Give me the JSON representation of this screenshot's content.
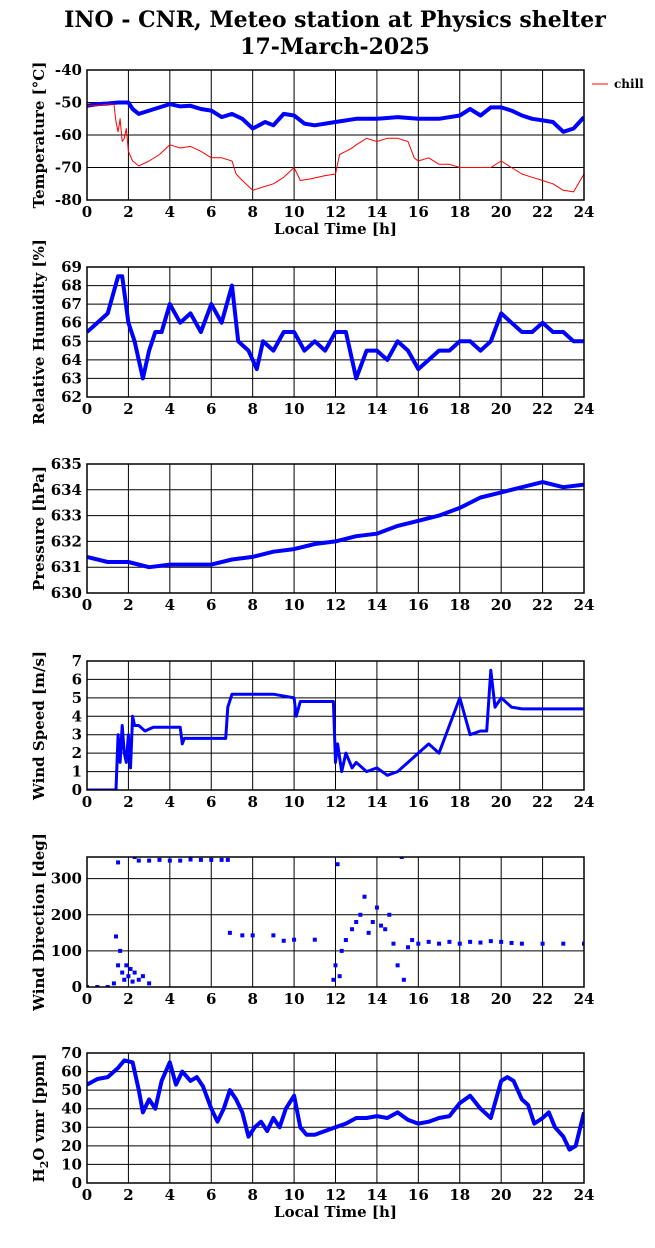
{
  "title_line1": "INO - CNR, Meteo station at Physics shelter",
  "title_line2": "17-March-2025",
  "colors": {
    "primary": "#0000ff",
    "secondary": "#ff0000",
    "frame": "#000000"
  },
  "chart_data": [
    {
      "type": "line",
      "ylabel": "Temperature [°C]",
      "xlabel": "Local Time [h]",
      "xlim": [
        0,
        24
      ],
      "ylim": [
        -80,
        -40
      ],
      "xticks": [
        0,
        2,
        4,
        6,
        8,
        10,
        12,
        14,
        16,
        18,
        20,
        22,
        24
      ],
      "yticks": [
        -80,
        -70,
        -60,
        -50,
        -40
      ],
      "grid": true,
      "legend": {
        "placement": "outside-right",
        "entries": [
          "chill"
        ]
      },
      "series": [
        {
          "color": "#0000ff",
          "width": 4,
          "x": [
            0,
            0.5,
            1,
            1.5,
            2,
            2.2,
            2.5,
            3,
            3.5,
            4,
            4.5,
            5,
            5.5,
            6,
            6.5,
            7,
            7.5,
            8,
            8.3,
            8.6,
            9,
            9.5,
            10,
            10.5,
            11,
            12,
            13,
            14,
            15,
            16,
            17,
            18,
            18.5,
            19,
            19.5,
            20,
            20.5,
            21,
            21.5,
            22,
            22.5,
            23,
            23.5,
            24
          ],
          "y": [
            -51,
            -50.5,
            -50.3,
            -50,
            -50,
            -52,
            -53.5,
            -52.5,
            -51.5,
            -50.5,
            -51.2,
            -51,
            -52,
            -52.5,
            -54.5,
            -53.5,
            -55,
            -58,
            -57,
            -56,
            -57,
            -53.5,
            -54,
            -56.5,
            -57,
            -56,
            -55,
            -55,
            -54.5,
            -55,
            -55,
            -54,
            -52,
            -54,
            -51.5,
            -51.5,
            -52.5,
            -54,
            -55,
            -55.5,
            -56,
            -59,
            -58,
            -54.5
          ]
        },
        {
          "name": "chill",
          "color": "#ff0000",
          "width": 1,
          "x": [
            0,
            0.5,
            1,
            1.3,
            1.4,
            1.5,
            1.6,
            1.7,
            1.8,
            1.9,
            2,
            2.2,
            2.5,
            3,
            3.5,
            4,
            4.5,
            5,
            5.5,
            6,
            6.5,
            7,
            7.2,
            7.5,
            8,
            8.5,
            9,
            9.5,
            10,
            10.3,
            10.8,
            11.5,
            12,
            12.2,
            12.5,
            12.8,
            13,
            13.5,
            14,
            14.5,
            15,
            15.5,
            15.8,
            16,
            16.5,
            17,
            17.5,
            18,
            18.5,
            19,
            19.5,
            20,
            20.5,
            21,
            21.5,
            22,
            22.5,
            23,
            23.5,
            24
          ],
          "y": [
            -51,
            -51,
            -50.5,
            -50.5,
            -56,
            -59,
            -55,
            -62,
            -61,
            -58,
            -65,
            -68,
            -69.5,
            -68,
            -66,
            -63,
            -64,
            -63.5,
            -65,
            -67,
            -67,
            -68,
            -72,
            -74,
            -77,
            -76,
            -75,
            -73,
            -70,
            -74,
            -73.5,
            -72.5,
            -72,
            -66,
            -65,
            -64,
            -63,
            -61,
            -62,
            -61,
            -61,
            -62,
            -67,
            -68,
            -67,
            -69,
            -69,
            -70,
            -70,
            -70,
            -70,
            -68,
            -70,
            -72,
            -73,
            -74,
            -75,
            -77,
            -77.5,
            -72
          ]
        }
      ]
    },
    {
      "type": "line",
      "ylabel": "Relative Humidity [%]",
      "xlim": [
        0,
        24
      ],
      "ylim": [
        62,
        69
      ],
      "xticks": [
        0,
        2,
        4,
        6,
        8,
        10,
        12,
        14,
        16,
        18,
        20,
        22,
        24
      ],
      "yticks": [
        62,
        63,
        64,
        65,
        66,
        67,
        68,
        69
      ],
      "grid": true,
      "series": [
        {
          "color": "#0000ff",
          "width": 4,
          "x": [
            0,
            0.5,
            1,
            1.5,
            1.7,
            2,
            2.3,
            2.7,
            3,
            3.3,
            3.6,
            4,
            4.5,
            5,
            5.5,
            6,
            6.5,
            7,
            7.3,
            7.8,
            8.2,
            8.5,
            9,
            9.5,
            10,
            10.5,
            11,
            11.5,
            12,
            12.5,
            13,
            13.5,
            14,
            14.5,
            15,
            15.5,
            16,
            16.5,
            17,
            17.5,
            18,
            18.5,
            19,
            19.5,
            20,
            20.5,
            21,
            21.5,
            22,
            22.5,
            23,
            23.5,
            24
          ],
          "y": [
            65.5,
            66,
            66.5,
            68.5,
            68.5,
            66,
            65,
            63,
            64.5,
            65.5,
            65.5,
            67,
            66,
            66.5,
            65.5,
            67,
            66,
            68,
            65,
            64.5,
            63.5,
            65,
            64.5,
            65.5,
            65.5,
            64.5,
            65,
            64.5,
            65.5,
            65.5,
            63,
            64.5,
            64.5,
            64,
            65,
            64.5,
            63.5,
            64,
            64.5,
            64.5,
            65,
            65,
            64.5,
            65,
            66.5,
            66,
            65.5,
            65.5,
            66,
            65.5,
            65.5,
            65,
            65
          ]
        }
      ]
    },
    {
      "type": "line",
      "ylabel": "Pressure [hPa]",
      "xlim": [
        0,
        24
      ],
      "ylim": [
        630,
        635
      ],
      "xticks": [
        0,
        2,
        4,
        6,
        8,
        10,
        12,
        14,
        16,
        18,
        20,
        22,
        24
      ],
      "yticks": [
        630,
        631,
        632,
        633,
        634,
        635
      ],
      "grid": true,
      "series": [
        {
          "color": "#0000ff",
          "width": 4,
          "x": [
            0,
            1,
            2,
            3,
            4,
            5,
            6,
            7,
            8,
            9,
            10,
            11,
            12,
            13,
            14,
            15,
            16,
            17,
            18,
            19,
            20,
            21,
            22,
            23,
            24
          ],
          "y": [
            631.4,
            631.2,
            631.2,
            631,
            631.1,
            631.1,
            631.1,
            631.3,
            631.4,
            631.6,
            631.7,
            631.9,
            632,
            632.2,
            632.3,
            632.6,
            632.8,
            633,
            633.3,
            633.7,
            633.9,
            634.1,
            634.3,
            634.1,
            634.2
          ]
        }
      ]
    },
    {
      "type": "line",
      "ylabel": "Wind Speed [m/s]",
      "xlim": [
        0,
        24
      ],
      "ylim": [
        0,
        7
      ],
      "xticks": [
        0,
        2,
        4,
        6,
        8,
        10,
        12,
        14,
        16,
        18,
        20,
        22,
        24
      ],
      "yticks": [
        0,
        1,
        2,
        3,
        4,
        5,
        6,
        7
      ],
      "grid": true,
      "series": [
        {
          "color": "#0000ff",
          "width": 3,
          "x": [
            0,
            1.4,
            1.5,
            1.6,
            1.7,
            1.8,
            1.9,
            2,
            2.1,
            2.2,
            2.3,
            2.5,
            2.8,
            3.2,
            4.5,
            4.6,
            4.7,
            6.7,
            6.8,
            7,
            8,
            9,
            10,
            10.1,
            10.3,
            11.9,
            12,
            12.1,
            12.3,
            12.5,
            12.8,
            13,
            13.5,
            14,
            14.5,
            15,
            15.5,
            16,
            16.5,
            17,
            17.5,
            18,
            18.5,
            19,
            19.3,
            19.5,
            19.7,
            20,
            20.5,
            21,
            22,
            23,
            24
          ],
          "y": [
            0,
            0,
            3,
            1.5,
            3.5,
            2,
            1.5,
            3,
            1.2,
            4,
            3.5,
            3.5,
            3.2,
            3.4,
            3.4,
            2.5,
            2.8,
            2.8,
            4.5,
            5.2,
            5.2,
            5.2,
            5,
            4,
            4.8,
            4.8,
            1.5,
            2.5,
            1,
            2,
            1.2,
            1.5,
            1,
            1.2,
            0.8,
            1,
            1.5,
            2,
            2.5,
            2,
            3.5,
            5,
            3,
            3.2,
            3.2,
            6.5,
            4.5,
            5,
            4.5,
            4.4,
            4.4,
            4.4,
            4.4
          ]
        }
      ]
    },
    {
      "type": "scatter",
      "ylabel": "Wind Direction [deg]",
      "xlim": [
        0,
        24
      ],
      "ylim": [
        0,
        360
      ],
      "xticks": [
        0,
        2,
        4,
        6,
        8,
        10,
        12,
        14,
        16,
        18,
        20,
        22,
        24
      ],
      "yticks": [
        0,
        100,
        200,
        300
      ],
      "grid": true,
      "series": [
        {
          "color": "#0000ff",
          "width": 3,
          "x": [
            0,
            0.5,
            1,
            1.3,
            1.4,
            1.5,
            1.6,
            1.7,
            1.8,
            1.9,
            2,
            2.1,
            2.2,
            2.3,
            2.5,
            2.7,
            3,
            1.5,
            2.3,
            2.5,
            3,
            3.5,
            4,
            4.5,
            5,
            5.5,
            6,
            6.5,
            6.8,
            6.9,
            7.5,
            8,
            9,
            9.5,
            10,
            11,
            11.9,
            12,
            12.1,
            12.2,
            12.3,
            12.5,
            12.8,
            13,
            13.2,
            13.4,
            13.6,
            13.8,
            14,
            14.2,
            14.4,
            14.6,
            14.8,
            15,
            15.2,
            15.3,
            15.5,
            15.7,
            16,
            16.5,
            17,
            17.5,
            18,
            18.5,
            19,
            19.5,
            20,
            20.5,
            21,
            22,
            23,
            24
          ],
          "y": [
            0,
            0,
            0,
            10,
            140,
            60,
            100,
            40,
            20,
            60,
            30,
            50,
            15,
            40,
            20,
            30,
            10,
            345,
            360,
            350,
            350,
            352,
            350,
            350,
            353,
            352,
            352,
            352,
            352,
            150,
            143,
            143,
            143,
            128,
            131,
            131,
            20,
            60,
            340,
            30,
            100,
            130,
            160,
            180,
            200,
            250,
            150,
            180,
            220,
            170,
            160,
            200,
            120,
            60,
            360,
            20,
            110,
            130,
            120,
            125,
            120,
            125,
            120,
            125,
            123,
            127,
            125,
            122,
            120,
            120,
            120,
            120
          ]
        }
      ]
    },
    {
      "type": "line",
      "ylabel": "H2O vmr [ppm]",
      "xlabel": "Local Time [h]",
      "xlim": [
        0,
        24
      ],
      "ylim": [
        0,
        70
      ],
      "xticks": [
        0,
        2,
        4,
        6,
        8,
        10,
        12,
        14,
        16,
        18,
        20,
        22,
        24
      ],
      "yticks": [
        0,
        10,
        20,
        30,
        40,
        50,
        60,
        70
      ],
      "grid": true,
      "series": [
        {
          "color": "#0000ff",
          "width": 4,
          "x": [
            0,
            0.5,
            1,
            1.5,
            1.8,
            2.2,
            2.5,
            2.7,
            3,
            3.3,
            3.6,
            4,
            4.3,
            4.6,
            5,
            5.3,
            5.6,
            6,
            6.3,
            6.6,
            6.9,
            7.2,
            7.5,
            7.8,
            8.1,
            8.4,
            8.7,
            9,
            9.3,
            9.6,
            10,
            10.3,
            10.6,
            11,
            11.5,
            12,
            12.5,
            13,
            13.5,
            14,
            14.5,
            15,
            15.5,
            16,
            16.5,
            17,
            17.5,
            18,
            18.5,
            19,
            19.5,
            20,
            20.3,
            20.6,
            21,
            21.3,
            21.6,
            22,
            22.3,
            22.6,
            23,
            23.3,
            23.6,
            24
          ],
          "y": [
            53,
            56,
            57,
            62,
            66,
            65,
            50,
            38,
            45,
            40,
            55,
            65,
            53,
            60,
            55,
            57,
            52,
            40,
            33,
            40,
            50,
            45,
            38,
            25,
            30,
            33,
            28,
            35,
            30,
            40,
            47,
            30,
            26,
            26,
            28,
            30,
            32,
            35,
            35,
            36,
            35,
            38,
            34,
            32,
            33,
            35,
            36,
            43,
            47,
            40,
            35,
            55,
            57,
            55,
            45,
            42,
            32,
            35,
            38,
            30,
            25,
            18,
            20,
            38
          ]
        }
      ]
    }
  ]
}
